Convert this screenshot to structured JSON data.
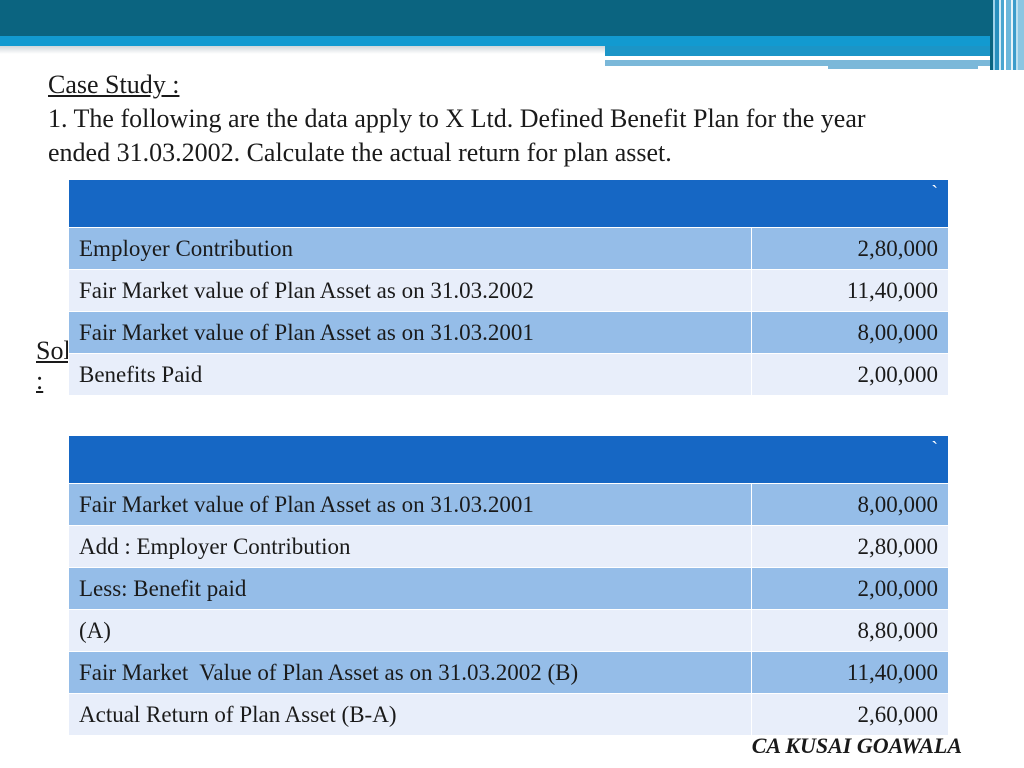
{
  "header": {
    "colors": {
      "dark": "#0b6480",
      "accent": "#129ad0",
      "light": "#7bb8d9"
    }
  },
  "intro": {
    "title": "Case Study :",
    "question": "1. The following are the data apply to X Ltd. Defined Benefit Plan for the year ended 31.03.2002. Calculate the actual return for plan asset."
  },
  "solution_label": "Solution :",
  "table1": {
    "header_symbol": "`",
    "rows": [
      {
        "label": "Employer Contribution",
        "value": "2,80,000"
      },
      {
        "label": "Fair Market value of Plan Asset as on 31.03.2002",
        "value": "11,40,000"
      },
      {
        "label": "Fair Market value of Plan Asset as on 31.03.2001",
        "value": "8,00,000"
      },
      {
        "label": "Benefits Paid",
        "value": "2,00,000"
      }
    ]
  },
  "table2": {
    "header_symbol": "`",
    "rows": [
      {
        "label": "Fair Market value of Plan Asset as on 31.03.2001",
        "value": "8,00,000"
      },
      {
        "label": "Add : Employer Contribution",
        "value": "2,80,000"
      },
      {
        "label": "Less: Benefit paid",
        "value": "2,00,000"
      },
      {
        "label": "(A)",
        "value": "8,80,000"
      },
      {
        "label": "Fair Market  Value of Plan Asset as on 31.03.2002 (B)",
        "value": "11,40,000"
      },
      {
        "label": "Actual Return of Plan Asset (B-A)",
        "value": "2,60,000"
      }
    ]
  },
  "footer": {
    "author": "CA KUSAI GOAWALA"
  }
}
